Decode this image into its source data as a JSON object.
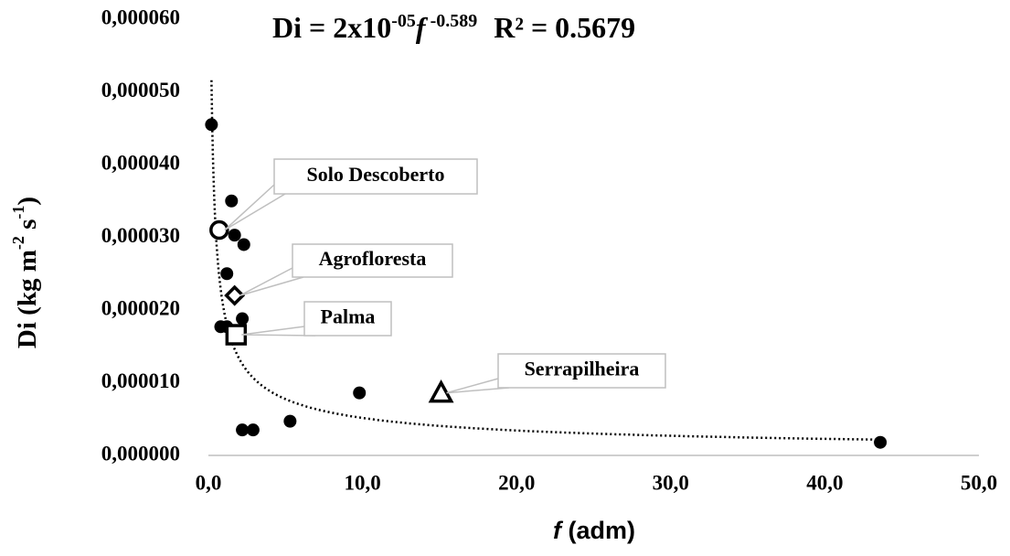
{
  "chart_data": {
    "type": "scatter",
    "equation": {
      "lhs": "Di = 2x10",
      "exp1": "-05",
      "f": "f",
      "exp2": " -0.589",
      "r2": "R² = 0.5679"
    },
    "trendline": {
      "type": "power",
      "a": 2e-05,
      "b": -0.589
    },
    "x_label": {
      "f": "f",
      "rest": " (adm)"
    },
    "y_label": {
      "p1": "Di (kg m",
      "s1": "-2",
      "p2": " s",
      "s2": "-1",
      "p3": ")"
    },
    "xlim": [
      0,
      50
    ],
    "ylim": [
      0,
      6e-05
    ],
    "xticks": [
      {
        "value": 0,
        "label": "0,0"
      },
      {
        "value": 10,
        "label": "10,0"
      },
      {
        "value": 20,
        "label": "20,0"
      },
      {
        "value": 30,
        "label": "30,0"
      },
      {
        "value": 40,
        "label": "40,0"
      },
      {
        "value": 50,
        "label": "50,0"
      }
    ],
    "yticks": [
      {
        "value": 0,
        "label": "0,000000"
      },
      {
        "value": 1e-05,
        "label": "0,000010"
      },
      {
        "value": 2e-05,
        "label": "0,000020"
      },
      {
        "value": 3e-05,
        "label": "0,000030"
      },
      {
        "value": 4e-05,
        "label": "0,000040"
      },
      {
        "value": 5e-05,
        "label": "0,000050"
      },
      {
        "value": 6e-05,
        "label": "0,000060"
      }
    ],
    "series": [
      {
        "marker": "dot",
        "color": "#000000",
        "x": [
          0.2,
          1.5,
          1.7,
          2.3,
          1.2,
          2.2,
          0.8,
          1.2,
          2.2,
          2.9,
          5.3,
          9.8,
          43.6
        ],
        "values": [
          4.55e-05,
          3.5e-05,
          3.03e-05,
          2.9e-05,
          2.5e-05,
          1.88e-05,
          1.77e-05,
          1.77e-05,
          3.5e-06,
          3.5e-06,
          4.7e-06,
          8.6e-06,
          1.8e-06
        ]
      },
      {
        "name": "Solo Descoberto",
        "marker": "circle",
        "color": "#000000",
        "x": [
          0.7
        ],
        "values": [
          3.1e-05
        ]
      },
      {
        "name": "Agrofloresta",
        "marker": "diamond",
        "color": "#000000",
        "x": [
          1.7
        ],
        "values": [
          2.2e-05
        ]
      },
      {
        "name": "Palma",
        "marker": "square",
        "color": "#000000",
        "x": [
          1.8
        ],
        "values": [
          1.66e-05
        ]
      },
      {
        "name": "Serrapilheira",
        "marker": "triangle",
        "color": "#000000",
        "x": [
          15.1
        ],
        "values": [
          8.6e-06
        ]
      }
    ]
  }
}
